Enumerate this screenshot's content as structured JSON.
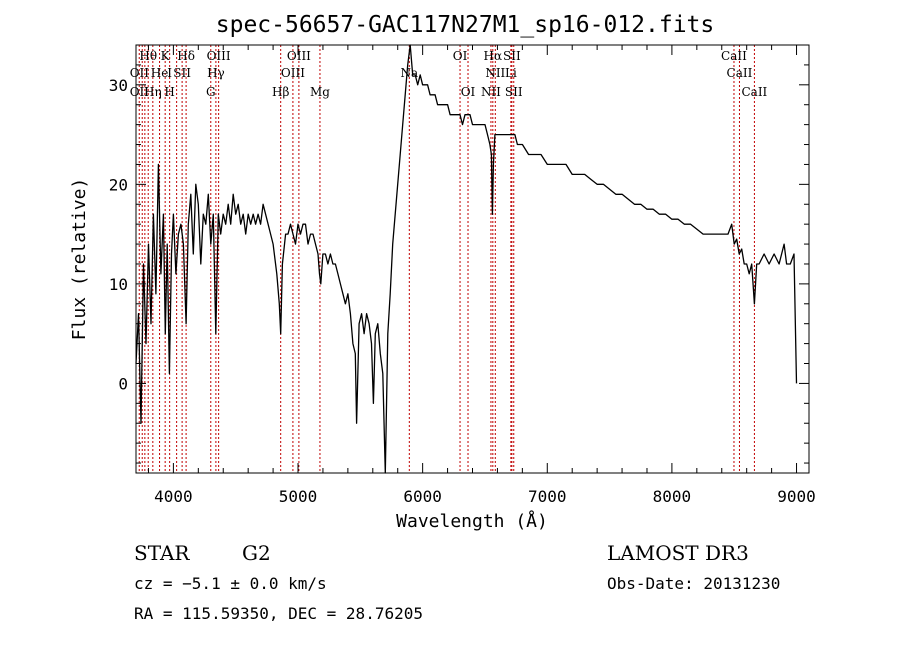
{
  "chart_data": {
    "type": "line",
    "title": "spec-56657-GAC117N27M1_sp16-012.fits",
    "xlabel": "Wavelength (Å)",
    "ylabel": "Flux (relative)",
    "xlim": [
      3700,
      9100
    ],
    "ylim": [
      -9,
      34
    ],
    "x_ticks": [
      4000,
      5000,
      6000,
      7000,
      8000,
      9000
    ],
    "x_tick_labels": [
      "4000",
      "5000",
      "6000",
      "7000",
      "8000",
      "9000"
    ],
    "y_ticks": [
      0,
      10,
      20,
      30
    ],
    "y_tick_labels": [
      "0",
      "10",
      "20",
      "30"
    ],
    "grid": false,
    "series": [
      {
        "values": [
          [
            3700,
            2
          ],
          [
            3720,
            7
          ],
          [
            3740,
            -4
          ],
          [
            3760,
            12
          ],
          [
            3780,
            4
          ],
          [
            3800,
            14
          ],
          [
            3820,
            6
          ],
          [
            3840,
            17
          ],
          [
            3860,
            9
          ],
          [
            3880,
            22
          ],
          [
            3900,
            11
          ],
          [
            3920,
            17
          ],
          [
            3935,
            5
          ],
          [
            3950,
            14
          ],
          [
            3968,
            1
          ],
          [
            3985,
            13
          ],
          [
            4000,
            17
          ],
          [
            4020,
            11
          ],
          [
            4040,
            15
          ],
          [
            4060,
            16
          ],
          [
            4080,
            14
          ],
          [
            4102,
            6
          ],
          [
            4120,
            16
          ],
          [
            4140,
            19
          ],
          [
            4160,
            13
          ],
          [
            4180,
            20
          ],
          [
            4200,
            18
          ],
          [
            4220,
            12
          ],
          [
            4240,
            17
          ],
          [
            4260,
            16
          ],
          [
            4280,
            19
          ],
          [
            4300,
            14
          ],
          [
            4320,
            17
          ],
          [
            4340,
            5
          ],
          [
            4360,
            17
          ],
          [
            4380,
            15
          ],
          [
            4400,
            17
          ],
          [
            4420,
            16
          ],
          [
            4440,
            18
          ],
          [
            4460,
            16
          ],
          [
            4480,
            19
          ],
          [
            4500,
            17
          ],
          [
            4520,
            18
          ],
          [
            4540,
            16
          ],
          [
            4560,
            17
          ],
          [
            4580,
            15
          ],
          [
            4600,
            17
          ],
          [
            4620,
            16
          ],
          [
            4640,
            17
          ],
          [
            4660,
            16
          ],
          [
            4680,
            17
          ],
          [
            4700,
            16
          ],
          [
            4720,
            18
          ],
          [
            4740,
            17
          ],
          [
            4760,
            16
          ],
          [
            4780,
            15
          ],
          [
            4800,
            14
          ],
          [
            4830,
            11
          ],
          [
            4850,
            8
          ],
          [
            4861,
            5
          ],
          [
            4875,
            12
          ],
          [
            4900,
            15
          ],
          [
            4920,
            15
          ],
          [
            4940,
            16
          ],
          [
            4960,
            15
          ],
          [
            4980,
            14
          ],
          [
            5000,
            16
          ],
          [
            5020,
            15
          ],
          [
            5040,
            16
          ],
          [
            5060,
            16
          ],
          [
            5080,
            14
          ],
          [
            5100,
            15
          ],
          [
            5120,
            15
          ],
          [
            5140,
            14
          ],
          [
            5160,
            13
          ],
          [
            5172,
            11
          ],
          [
            5183,
            10
          ],
          [
            5200,
            13
          ],
          [
            5220,
            13
          ],
          [
            5240,
            12
          ],
          [
            5260,
            13
          ],
          [
            5280,
            12
          ],
          [
            5300,
            12
          ],
          [
            5320,
            11
          ],
          [
            5340,
            10
          ],
          [
            5360,
            9
          ],
          [
            5380,
            8
          ],
          [
            5400,
            9
          ],
          [
            5420,
            7
          ],
          [
            5440,
            4
          ],
          [
            5460,
            3
          ],
          [
            5470,
            -4
          ],
          [
            5490,
            6
          ],
          [
            5510,
            7
          ],
          [
            5530,
            5
          ],
          [
            5550,
            7
          ],
          [
            5570,
            6
          ],
          [
            5590,
            4
          ],
          [
            5605,
            -2
          ],
          [
            5620,
            5
          ],
          [
            5640,
            6
          ],
          [
            5660,
            3
          ],
          [
            5680,
            1
          ],
          [
            5700,
            -9
          ],
          [
            5720,
            5
          ],
          [
            5740,
            9
          ],
          [
            5760,
            14
          ],
          [
            5780,
            17
          ],
          [
            5800,
            20
          ],
          [
            5820,
            23
          ],
          [
            5840,
            26
          ],
          [
            5860,
            29
          ],
          [
            5880,
            32
          ],
          [
            5900,
            34
          ],
          [
            5920,
            31
          ],
          [
            5940,
            31
          ],
          [
            5960,
            30
          ],
          [
            5980,
            31
          ],
          [
            6000,
            30
          ],
          [
            6020,
            30
          ],
          [
            6040,
            30
          ],
          [
            6060,
            29
          ],
          [
            6080,
            29
          ],
          [
            6100,
            29
          ],
          [
            6120,
            28
          ],
          [
            6140,
            28
          ],
          [
            6160,
            28
          ],
          [
            6180,
            28
          ],
          [
            6200,
            28
          ],
          [
            6220,
            27
          ],
          [
            6240,
            27
          ],
          [
            6260,
            27
          ],
          [
            6280,
            27
          ],
          [
            6300,
            27
          ],
          [
            6320,
            26
          ],
          [
            6340,
            27
          ],
          [
            6360,
            27
          ],
          [
            6380,
            27
          ],
          [
            6400,
            26
          ],
          [
            6420,
            26
          ],
          [
            6440,
            26
          ],
          [
            6460,
            26
          ],
          [
            6480,
            26
          ],
          [
            6500,
            26
          ],
          [
            6520,
            25
          ],
          [
            6540,
            24
          ],
          [
            6552,
            23
          ],
          [
            6560,
            17
          ],
          [
            6568,
            22
          ],
          [
            6580,
            25
          ],
          [
            6600,
            25
          ],
          [
            6620,
            25
          ],
          [
            6640,
            25
          ],
          [
            6660,
            25
          ],
          [
            6680,
            25
          ],
          [
            6700,
            25
          ],
          [
            6720,
            25
          ],
          [
            6740,
            25
          ],
          [
            6760,
            24
          ],
          [
            6800,
            24
          ],
          [
            6850,
            23
          ],
          [
            6900,
            23
          ],
          [
            6950,
            23
          ],
          [
            7000,
            22
          ],
          [
            7050,
            22
          ],
          [
            7100,
            22
          ],
          [
            7150,
            22
          ],
          [
            7200,
            21
          ],
          [
            7250,
            21
          ],
          [
            7300,
            21
          ],
          [
            7350,
            20.5
          ],
          [
            7400,
            20
          ],
          [
            7450,
            20
          ],
          [
            7500,
            19.5
          ],
          [
            7550,
            19
          ],
          [
            7600,
            19
          ],
          [
            7650,
            18.5
          ],
          [
            7700,
            18
          ],
          [
            7750,
            18
          ],
          [
            7800,
            17.5
          ],
          [
            7850,
            17.5
          ],
          [
            7900,
            17
          ],
          [
            7950,
            17
          ],
          [
            8000,
            16.5
          ],
          [
            8050,
            16.5
          ],
          [
            8100,
            16
          ],
          [
            8150,
            16
          ],
          [
            8200,
            15.5
          ],
          [
            8250,
            15
          ],
          [
            8300,
            15
          ],
          [
            8350,
            15
          ],
          [
            8400,
            15
          ],
          [
            8450,
            15
          ],
          [
            8480,
            16
          ],
          [
            8500,
            14
          ],
          [
            8520,
            14.5
          ],
          [
            8540,
            13
          ],
          [
            8560,
            13.5
          ],
          [
            8580,
            12
          ],
          [
            8600,
            12
          ],
          [
            8620,
            11
          ],
          [
            8640,
            12
          ],
          [
            8662,
            8
          ],
          [
            8680,
            12
          ],
          [
            8700,
            12
          ],
          [
            8740,
            13
          ],
          [
            8780,
            12
          ],
          [
            8820,
            13
          ],
          [
            8860,
            12
          ],
          [
            8900,
            14
          ],
          [
            8920,
            12
          ],
          [
            8950,
            12
          ],
          [
            8980,
            13
          ],
          [
            9000,
            0
          ]
        ]
      }
    ],
    "lines": [
      {
        "x": 3726
      },
      {
        "x": 3750
      },
      {
        "x": 3771
      },
      {
        "x": 3798
      },
      {
        "x": 3835
      },
      {
        "x": 3889
      },
      {
        "x": 3934
      },
      {
        "x": 3970
      },
      {
        "x": 4026
      },
      {
        "x": 4070
      },
      {
        "x": 4102
      },
      {
        "x": 4300
      },
      {
        "x": 4341
      },
      {
        "x": 4363
      },
      {
        "x": 4861
      },
      {
        "x": 4959
      },
      {
        "x": 5007
      },
      {
        "x": 5176
      },
      {
        "x": 5893
      },
      {
        "x": 6300
      },
      {
        "x": 6364
      },
      {
        "x": 6548
      },
      {
        "x": 6563
      },
      {
        "x": 6583
      },
      {
        "x": 6708
      },
      {
        "x": 6716
      },
      {
        "x": 6731
      },
      {
        "x": 8498
      },
      {
        "x": 8542
      },
      {
        "x": 8662
      }
    ],
    "line_labels": [
      {
        "text": "Hθ",
        "x": 3798,
        "row": 0
      },
      {
        "text": "K",
        "x": 3934,
        "row": 0
      },
      {
        "text": "Hδ",
        "x": 4102,
        "row": 0
      },
      {
        "text": "OIII",
        "x": 4363,
        "row": 0
      },
      {
        "text": "OIII",
        "x": 5007,
        "row": 0
      },
      {
        "text": "OI",
        "x": 6300,
        "row": 0
      },
      {
        "text": "Hα",
        "x": 6563,
        "row": 0
      },
      {
        "text": "SII",
        "x": 6716,
        "row": 0
      },
      {
        "text": "CaII",
        "x": 8498,
        "row": 0
      },
      {
        "text": "OII",
        "x": 3727,
        "row": 1
      },
      {
        "text": "He",
        "x": 3889,
        "row": 1
      },
      {
        "text": "I",
        "x": 3970,
        "row": 1
      },
      {
        "text": "SII",
        "x": 4070,
        "row": 1
      },
      {
        "text": "Hγ",
        "x": 4341,
        "row": 1
      },
      {
        "text": "OIII",
        "x": 4959,
        "row": 1
      },
      {
        "text": "Na",
        "x": 5893,
        "row": 1
      },
      {
        "text": "NII",
        "x": 6583,
        "row": 1
      },
      {
        "text": "Li",
        "x": 6708,
        "row": 1
      },
      {
        "text": "CaII",
        "x": 8542,
        "row": 1
      },
      {
        "text": "OII",
        "x": 3727,
        "row": 2
      },
      {
        "text": "Hη",
        "x": 3835,
        "row": 2
      },
      {
        "text": "H",
        "x": 3970,
        "row": 2
      },
      {
        "text": "G",
        "x": 4300,
        "row": 2
      },
      {
        "text": "Hβ",
        "x": 4861,
        "row": 2
      },
      {
        "text": "Mg",
        "x": 5176,
        "row": 2
      },
      {
        "text": "OI",
        "x": 6364,
        "row": 2
      },
      {
        "text": "NII",
        "x": 6548,
        "row": 2
      },
      {
        "text": "SII",
        "x": 6731,
        "row": 2
      },
      {
        "text": "CaII",
        "x": 8662,
        "row": 2
      }
    ]
  },
  "info": {
    "class": "STAR",
    "subclass": "G2",
    "survey": "LAMOST DR3",
    "cz": "cz = −5.1 ± 0.0 km/s",
    "obs_date": "Obs-Date: 20131230",
    "coords": "RA = 115.59350, DEC =  28.76205"
  },
  "colors": {
    "spectrum": "#000000",
    "line_markers": "#c00000",
    "axes": "#000000",
    "background": "#ffffff"
  }
}
